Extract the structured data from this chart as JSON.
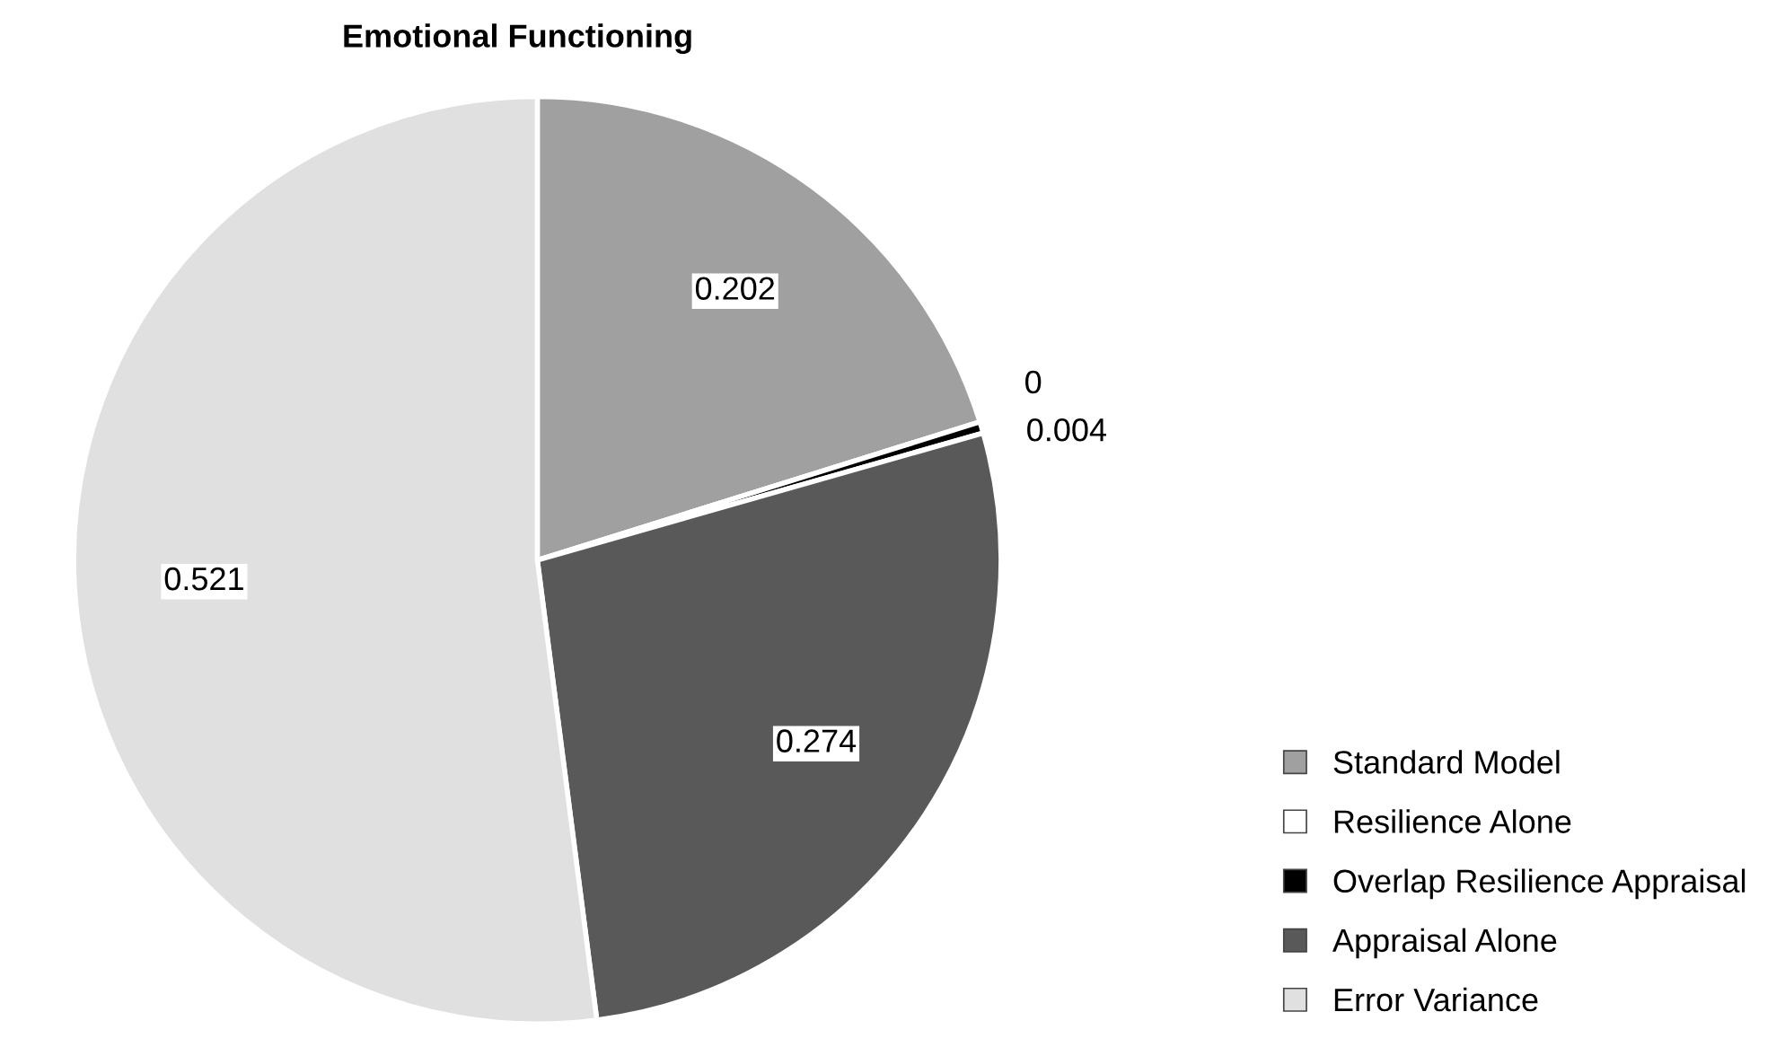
{
  "chart_data": {
    "type": "pie",
    "title": "Emotional Functioning",
    "categories": [
      "Standard Model",
      "Resilience Alone",
      "Overlap Resilience Appraisal",
      "Appraisal Alone",
      "Error Variance"
    ],
    "values": [
      0.202,
      0,
      0.004,
      0.274,
      0.521
    ],
    "colors": [
      "#a0a0a0",
      "#ffffff",
      "#000000",
      "#595959",
      "#e0e0e0"
    ],
    "value_labels": [
      "0.202",
      "0",
      "0.004",
      "0.274",
      "0.521"
    ],
    "legend": "bottom right"
  }
}
